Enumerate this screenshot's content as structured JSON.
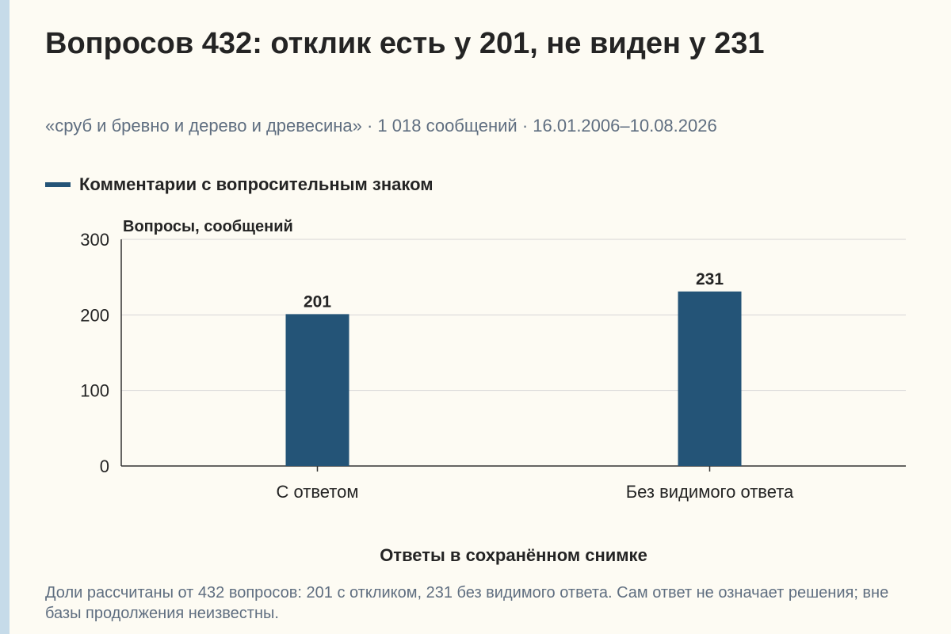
{
  "header": {
    "title": "Вопросов 432: отклик есть у 201, не виден у 231",
    "subtitle": "«сруб и бревно и дерево и древесина» · 1 018 сообщений · 16.01.2006–10.08.2026"
  },
  "colors": {
    "background": "#fdfbf3",
    "bar": "#245477",
    "left_strip": "#c6dbe9",
    "muted_text": "#5f6e80"
  },
  "chart_data": {
    "type": "bar",
    "categories": [
      "С ответом",
      "Без видимого ответа"
    ],
    "series": [
      {
        "name": "Комментарии с вопросительным знаком",
        "values": [
          201,
          231
        ]
      }
    ],
    "data_labels": [
      "201",
      "231"
    ],
    "ylabel": "Вопросы, сообщений",
    "xlabel": "Ответы в сохранённом снимке",
    "ylim": [
      0,
      300
    ],
    "yticks": [
      0,
      100,
      200,
      300
    ],
    "ytick_labels": [
      "0",
      "100",
      "200",
      "300"
    ],
    "grid": true,
    "legend_position": "top-left"
  },
  "footnote": "Доли рассчитаны от 432 вопросов: 201 с откликом, 231 без видимого ответа. Сам ответ не означает решения; вне базы продолжения неизвестны."
}
